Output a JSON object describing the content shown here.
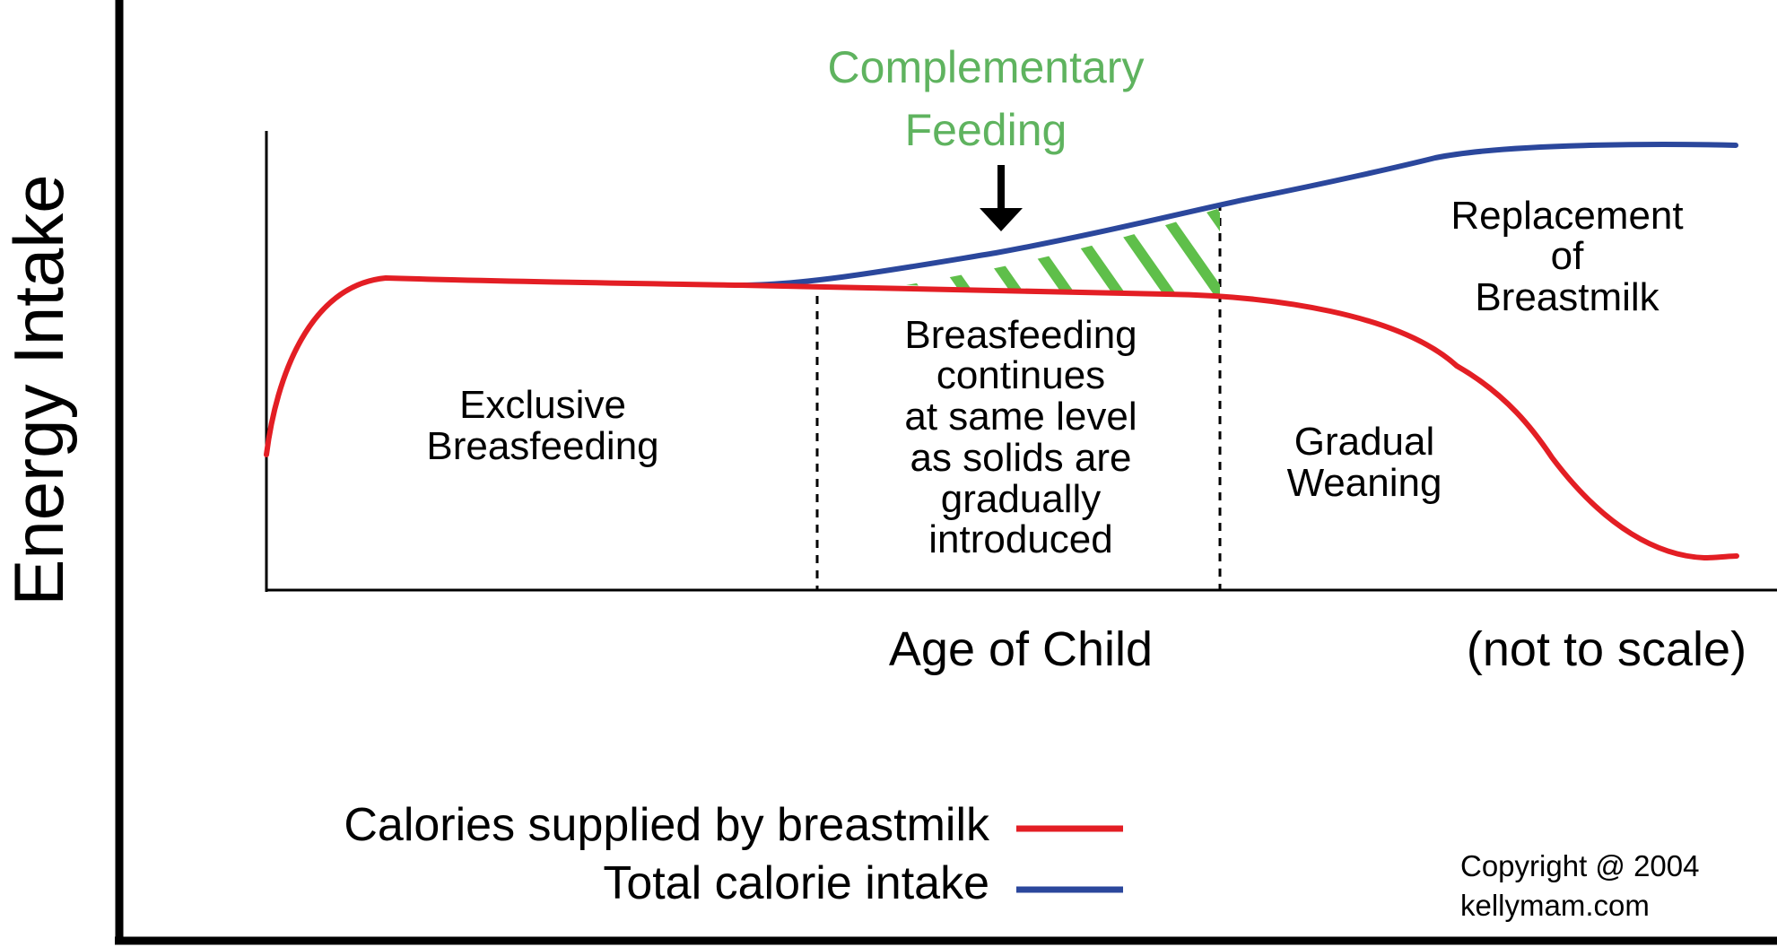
{
  "y_axis_label": "Energy Intake",
  "x_axis_label": "Age of Child",
  "scale_note": "(not to scale)",
  "complementary": [
    "Complementary",
    "Feeding"
  ],
  "stages": {
    "exclusive": [
      "Exclusive",
      "Breasfeeding"
    ],
    "continues": [
      "Breasfeeding",
      "continues",
      "at same level",
      "as solids are",
      "gradually",
      "introduced"
    ],
    "weaning": [
      "Gradual",
      "Weaning"
    ],
    "replacement": [
      "Replacement",
      "of",
      "Breastmilk"
    ]
  },
  "legend": [
    {
      "label": "Calories supplied by breastmilk",
      "color": "#e31e24"
    },
    {
      "label": "Total calorie intake",
      "color": "#2b479c"
    }
  ],
  "copyright": [
    "Copyright @ 2004",
    "kellymam.com"
  ],
  "colors": {
    "breastmilk": "#e31e24",
    "total": "#2b479c",
    "complementary": "#5fb35f",
    "hatch": "#5fbf4a",
    "axis": "#000000"
  }
}
